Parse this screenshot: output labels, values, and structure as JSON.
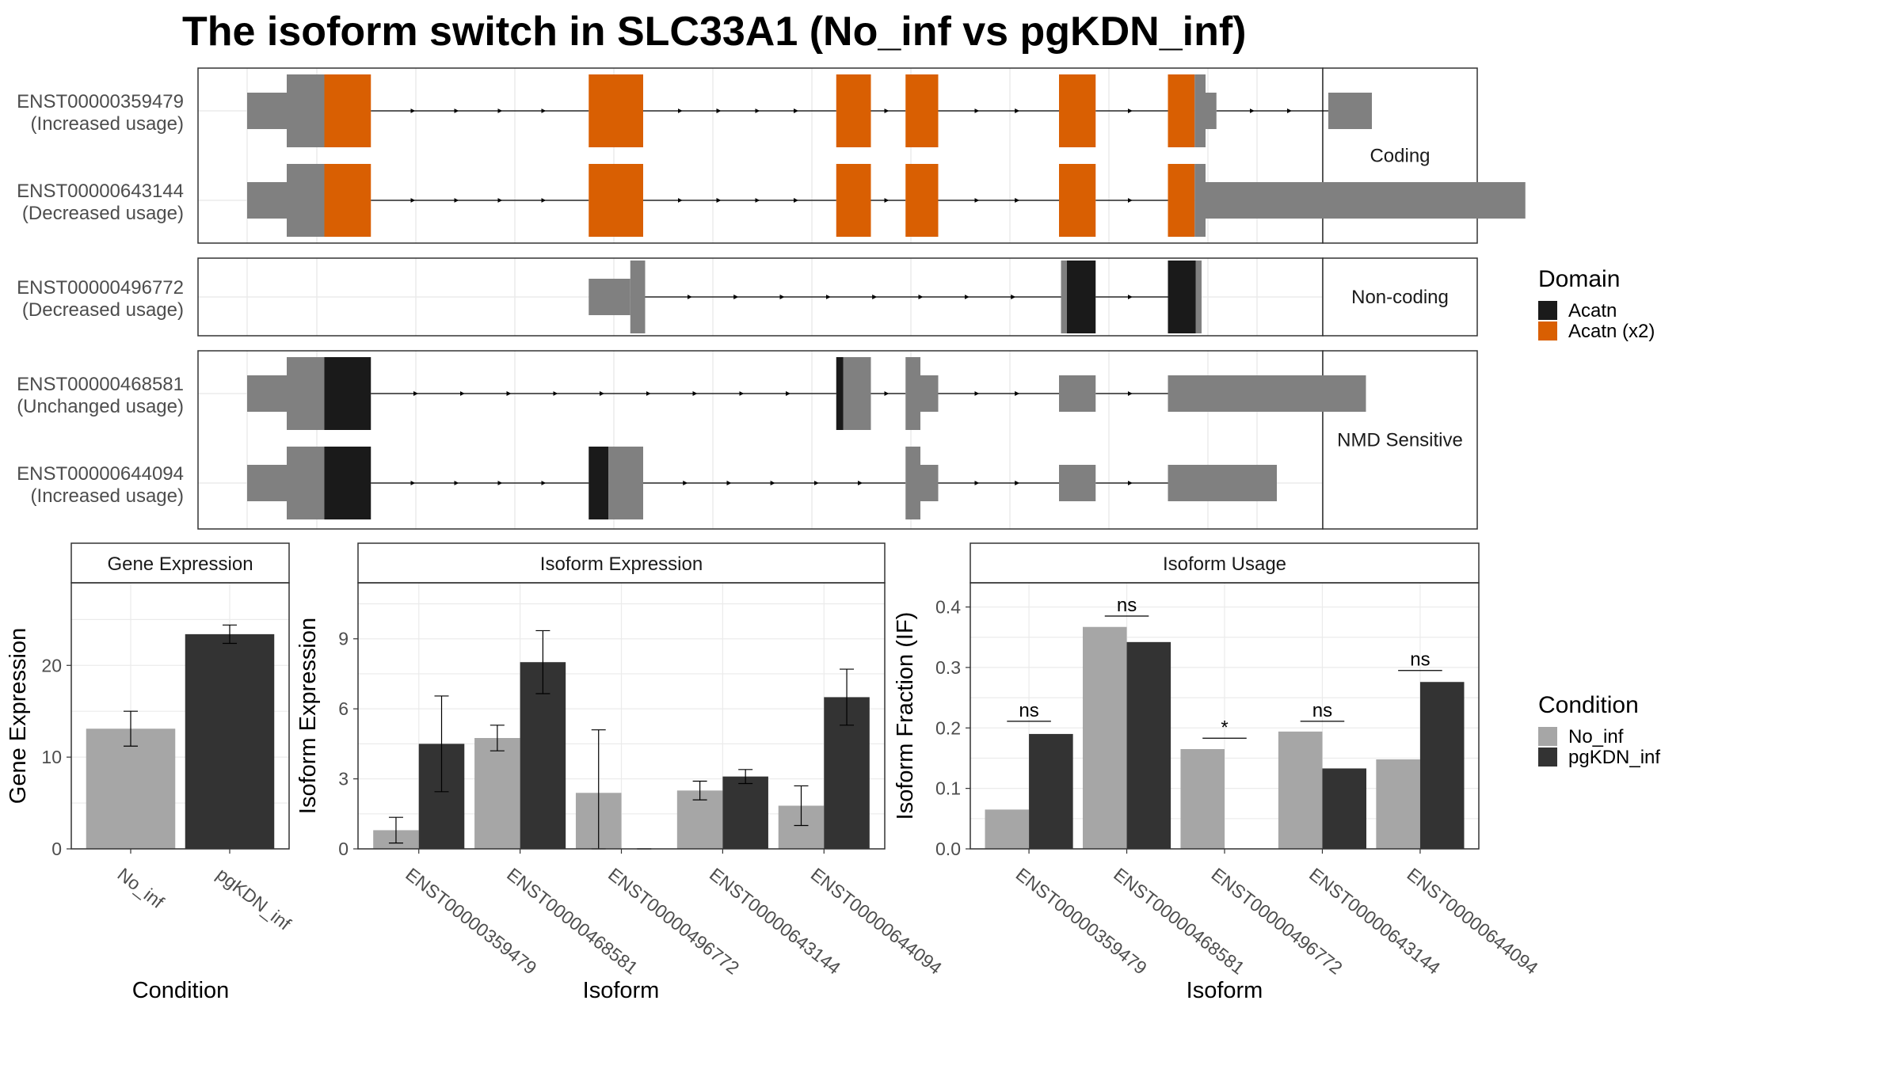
{
  "title": "The isoform switch in SLC33A1 (No_inf vs pgKDN_inf)",
  "colors": {
    "no_inf": "#a6a6a6",
    "pgkdn_inf": "#333333",
    "domain_acatn": "#1a1a1a",
    "domain_acatn_x2": "#d95f02",
    "transcript": "#808080",
    "grid": "#ebebeb",
    "strip": "#ffffff"
  },
  "legends": {
    "domain": {
      "title": "Domain",
      "items": [
        {
          "label": "Acatn",
          "color": "#1a1a1a"
        },
        {
          "label": "Acatn (x2)",
          "color": "#d95f02"
        }
      ]
    },
    "condition": {
      "title": "Condition",
      "items": [
        {
          "label": "No_inf",
          "color": "#a6a6a6"
        },
        {
          "label": "pgKDN_inf",
          "color": "#333333"
        }
      ]
    }
  },
  "chart_data": [
    {
      "type": "gene-structure",
      "panels": [
        {
          "label": "Coding",
          "transcripts": [
            {
              "name": "ENST00000359479",
              "usage": "(Increased usage)",
              "segments": [
                {
                  "s": 0,
                  "e": 40,
                  "kind": "utr"
                },
                {
                  "s": 40,
                  "e": 78,
                  "kind": "cds"
                },
                {
                  "s": 78,
                  "e": 125,
                  "kind": "cds",
                  "domain": "Acatn (x2)"
                },
                {
                  "s": 345,
                  "e": 400,
                  "kind": "cds",
                  "domain": "Acatn (x2)"
                },
                {
                  "s": 595,
                  "e": 630,
                  "kind": "cds",
                  "domain": "Acatn (x2)"
                },
                {
                  "s": 665,
                  "e": 698,
                  "kind": "cds",
                  "domain": "Acatn (x2)"
                },
                {
                  "s": 820,
                  "e": 857,
                  "kind": "cds",
                  "domain": "Acatn (x2)"
                },
                {
                  "s": 930,
                  "e": 957,
                  "kind": "cds",
                  "domain": "Acatn (x2)"
                },
                {
                  "s": 957,
                  "e": 968,
                  "kind": "cds"
                },
                {
                  "s": 968,
                  "e": 979,
                  "kind": "utr"
                },
                {
                  "s": 1092,
                  "e": 1136,
                  "kind": "utr"
                }
              ]
            },
            {
              "name": "ENST00000643144",
              "usage": "(Decreased usage)",
              "segments": [
                {
                  "s": 0,
                  "e": 40,
                  "kind": "utr"
                },
                {
                  "s": 40,
                  "e": 78,
                  "kind": "cds"
                },
                {
                  "s": 78,
                  "e": 125,
                  "kind": "cds",
                  "domain": "Acatn (x2)"
                },
                {
                  "s": 345,
                  "e": 400,
                  "kind": "cds",
                  "domain": "Acatn (x2)"
                },
                {
                  "s": 595,
                  "e": 630,
                  "kind": "cds",
                  "domain": "Acatn (x2)"
                },
                {
                  "s": 665,
                  "e": 698,
                  "kind": "cds",
                  "domain": "Acatn (x2)"
                },
                {
                  "s": 820,
                  "e": 857,
                  "kind": "cds",
                  "domain": "Acatn (x2)"
                },
                {
                  "s": 930,
                  "e": 957,
                  "kind": "cds",
                  "domain": "Acatn (x2)"
                },
                {
                  "s": 957,
                  "e": 968,
                  "kind": "cds"
                },
                {
                  "s": 968,
                  "e": 1291,
                  "kind": "utr"
                }
              ]
            }
          ]
        },
        {
          "label": "Non-coding",
          "transcripts": [
            {
              "name": "ENST00000496772",
              "usage": "(Decreased usage)",
              "segments": [
                {
                  "s": 345,
                  "e": 387,
                  "kind": "utr"
                },
                {
                  "s": 387,
                  "e": 402,
                  "kind": "cds"
                },
                {
                  "s": 822,
                  "e": 828,
                  "kind": "cds"
                },
                {
                  "s": 828,
                  "e": 857,
                  "kind": "cds",
                  "domain": "Acatn"
                },
                {
                  "s": 930,
                  "e": 958,
                  "kind": "cds",
                  "domain": "Acatn"
                },
                {
                  "s": 958,
                  "e": 964,
                  "kind": "cds"
                }
              ]
            }
          ]
        },
        {
          "label": "NMD Sensitive",
          "transcripts": [
            {
              "name": "ENST00000468581",
              "usage": "(Unchanged usage)",
              "segments": [
                {
                  "s": 0,
                  "e": 40,
                  "kind": "utr"
                },
                {
                  "s": 40,
                  "e": 78,
                  "kind": "cds"
                },
                {
                  "s": 78,
                  "e": 125,
                  "kind": "cds",
                  "domain": "Acatn"
                },
                {
                  "s": 595,
                  "e": 602,
                  "kind": "cds",
                  "domain": "Acatn"
                },
                {
                  "s": 602,
                  "e": 630,
                  "kind": "cds"
                },
                {
                  "s": 665,
                  "e": 680,
                  "kind": "cds"
                },
                {
                  "s": 680,
                  "e": 698,
                  "kind": "utr"
                },
                {
                  "s": 820,
                  "e": 857,
                  "kind": "utr"
                },
                {
                  "s": 930,
                  "e": 1130,
                  "kind": "utr"
                }
              ]
            },
            {
              "name": "ENST00000644094",
              "usage": "(Increased usage)",
              "segments": [
                {
                  "s": 0,
                  "e": 40,
                  "kind": "utr"
                },
                {
                  "s": 40,
                  "e": 78,
                  "kind": "cds"
                },
                {
                  "s": 78,
                  "e": 125,
                  "kind": "cds",
                  "domain": "Acatn"
                },
                {
                  "s": 345,
                  "e": 365,
                  "kind": "cds",
                  "domain": "Acatn"
                },
                {
                  "s": 365,
                  "e": 400,
                  "kind": "cds"
                },
                {
                  "s": 665,
                  "e": 680,
                  "kind": "cds"
                },
                {
                  "s": 680,
                  "e": 698,
                  "kind": "utr"
                },
                {
                  "s": 820,
                  "e": 857,
                  "kind": "utr"
                },
                {
                  "s": 930,
                  "e": 1040,
                  "kind": "utr"
                }
              ]
            }
          ]
        }
      ]
    },
    {
      "type": "bar",
      "strip": "Gene Expression",
      "ylabel": "Gene Expression",
      "xlabel": "Condition",
      "ylim": [
        0,
        29
      ],
      "yticks": [
        0,
        10,
        20
      ],
      "categories": [
        "No_inf",
        "pgKDN_inf"
      ],
      "series": [
        {
          "name": "Condition",
          "values": [
            13.1,
            23.4
          ],
          "errors": [
            1.9,
            1.0
          ],
          "colors": [
            "#a6a6a6",
            "#333333"
          ]
        }
      ]
    },
    {
      "type": "bar",
      "strip": "Isoform Expression",
      "ylabel": "Isoform Expression",
      "xlabel": "Isoform",
      "ylim": [
        0,
        11.4
      ],
      "yticks": [
        0,
        3,
        6,
        9
      ],
      "categories": [
        "ENST00000359479",
        "ENST00000468581",
        "ENST00000496772",
        "ENST00000643144",
        "ENST00000644094"
      ],
      "series": [
        {
          "name": "No_inf",
          "values": [
            0.8,
            4.75,
            2.4,
            2.5,
            1.85
          ],
          "errors": [
            0.55,
            0.55,
            2.7,
            0.4,
            0.85
          ]
        },
        {
          "name": "pgKDN_inf",
          "values": [
            4.5,
            8.0,
            0.0,
            3.1,
            6.5
          ],
          "errors": [
            2.05,
            1.35,
            0.0,
            0.3,
            1.2
          ]
        }
      ]
    },
    {
      "type": "bar",
      "strip": "Isoform Usage",
      "ylabel": "Isoform Fraction (IF)",
      "xlabel": "Isoform",
      "ylim": [
        0,
        0.44
      ],
      "yticks": [
        0.0,
        0.1,
        0.2,
        0.3,
        0.4
      ],
      "ytick_labels": [
        "0.0",
        "0.1",
        "0.2",
        "0.3",
        "0.4"
      ],
      "categories": [
        "ENST00000359479",
        "ENST00000468581",
        "ENST00000496772",
        "ENST00000643144",
        "ENST00000644094"
      ],
      "series": [
        {
          "name": "No_inf",
          "values": [
            0.065,
            0.367,
            0.165,
            0.194,
            0.148
          ]
        },
        {
          "name": "pgKDN_inf",
          "values": [
            0.19,
            0.342,
            0.0,
            0.133,
            0.276
          ]
        }
      ],
      "annotations": [
        {
          "label": "ns",
          "y": 0.211
        },
        {
          "label": "ns",
          "y": 0.385
        },
        {
          "label": "*",
          "y": 0.183
        },
        {
          "label": "ns",
          "y": 0.211
        },
        {
          "label": "ns",
          "y": 0.295
        }
      ]
    }
  ]
}
